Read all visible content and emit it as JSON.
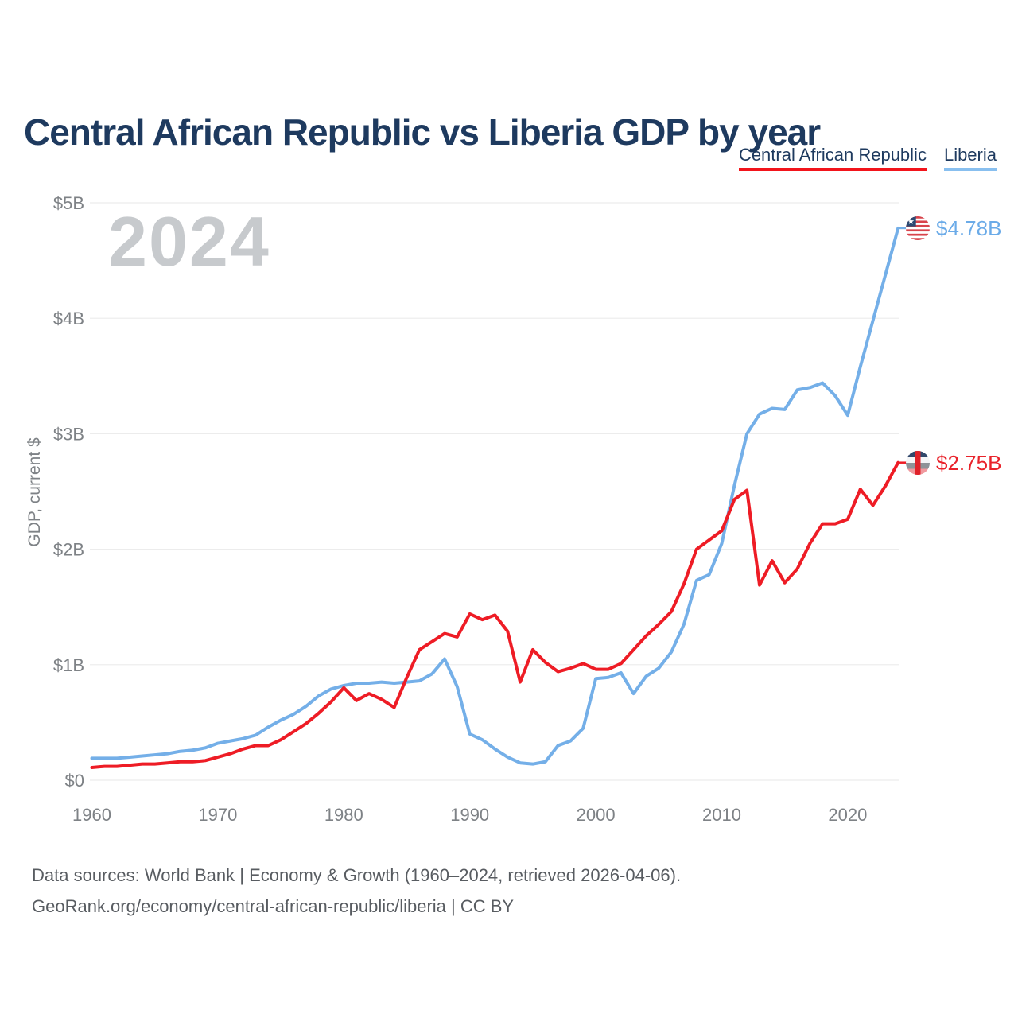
{
  "title": "Central African Republic vs Liberia GDP by year",
  "watermark": "2024",
  "y_axis_title": "GDP, current $",
  "legend": {
    "items": [
      {
        "label": "Central African Republic",
        "color": "#ee1c25"
      },
      {
        "label": "Liberia",
        "color": "#88bfef"
      }
    ]
  },
  "footer": {
    "line1": "Data sources: World Bank | Economy & Growth (1960–2024, retrieved 2026-04-06).",
    "line2": "GeoRank.org/economy/central-african-republic/liberia | CC BY"
  },
  "chart_data": {
    "type": "line",
    "title": "Central African Republic vs Liberia GDP by year",
    "xlabel": "",
    "ylabel": "GDP, current $",
    "xlim": [
      1960,
      2024
    ],
    "ylim": [
      0,
      5
    ],
    "grid": "horizontal-only",
    "legend_position": "top-right",
    "watermark": "2024",
    "x_ticks": [
      "1960",
      "1970",
      "1980",
      "1990",
      "2000",
      "2010",
      "2020"
    ],
    "y_ticks": [
      "$0",
      "$1B",
      "$2B",
      "$3B",
      "$4B",
      "$5B"
    ],
    "x": [
      1960,
      1961,
      1962,
      1963,
      1964,
      1965,
      1966,
      1967,
      1968,
      1969,
      1970,
      1971,
      1972,
      1973,
      1974,
      1975,
      1976,
      1977,
      1978,
      1979,
      1980,
      1981,
      1982,
      1983,
      1984,
      1985,
      1986,
      1987,
      1988,
      1989,
      1990,
      1991,
      1992,
      1993,
      1994,
      1995,
      1996,
      1997,
      1998,
      1999,
      2000,
      2001,
      2002,
      2003,
      2004,
      2005,
      2006,
      2007,
      2008,
      2009,
      2010,
      2011,
      2012,
      2013,
      2014,
      2015,
      2016,
      2017,
      2018,
      2019,
      2020,
      2021,
      2022,
      2023,
      2024
    ],
    "series": [
      {
        "name": "Central African Republic",
        "color": "#ee1c25",
        "end_label": "$2.75B",
        "end_value": 2.75,
        "values": [
          0.11,
          0.12,
          0.12,
          0.13,
          0.14,
          0.14,
          0.15,
          0.16,
          0.16,
          0.17,
          0.2,
          0.23,
          0.27,
          0.3,
          0.3,
          0.35,
          0.42,
          0.49,
          0.58,
          0.68,
          0.8,
          0.69,
          0.75,
          0.7,
          0.63,
          0.89,
          1.13,
          1.2,
          1.27,
          1.24,
          1.44,
          1.39,
          1.43,
          1.29,
          0.85,
          1.13,
          1.02,
          0.94,
          0.97,
          1.01,
          0.96,
          0.96,
          1.01,
          1.13,
          1.25,
          1.35,
          1.46,
          1.7,
          2.0,
          2.08,
          2.16,
          2.43,
          2.51,
          1.69,
          1.9,
          1.71,
          1.83,
          2.05,
          2.22,
          2.22,
          2.26,
          2.52,
          2.38,
          2.55,
          2.75
        ]
      },
      {
        "name": "Liberia",
        "color": "#74afe8",
        "end_label": "$4.78B",
        "end_value": 4.78,
        "values": [
          0.19,
          0.19,
          0.19,
          0.2,
          0.21,
          0.22,
          0.23,
          0.25,
          0.26,
          0.28,
          0.32,
          0.34,
          0.36,
          0.39,
          0.46,
          0.52,
          0.57,
          0.64,
          0.73,
          0.79,
          0.82,
          0.84,
          0.84,
          0.85,
          0.84,
          0.85,
          0.86,
          0.92,
          1.05,
          0.81,
          0.4,
          0.35,
          0.27,
          0.2,
          0.15,
          0.14,
          0.16,
          0.3,
          0.34,
          0.45,
          0.88,
          0.89,
          0.93,
          0.75,
          0.9,
          0.97,
          1.11,
          1.35,
          1.73,
          1.78,
          2.05,
          2.55,
          3.0,
          3.17,
          3.22,
          3.21,
          3.38,
          3.4,
          3.44,
          3.33,
          3.16,
          3.58,
          3.98,
          4.38,
          4.78
        ]
      }
    ]
  }
}
